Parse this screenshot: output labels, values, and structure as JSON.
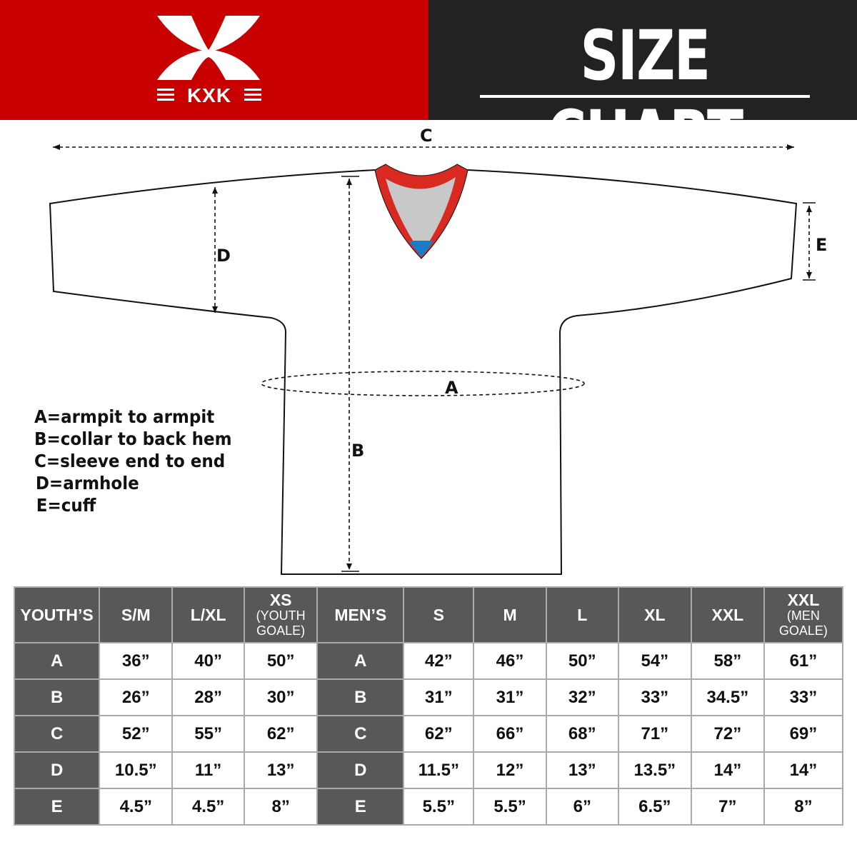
{
  "brand": {
    "name": "KXK",
    "color": "#c80000"
  },
  "header": {
    "title": "SIZE CHART",
    "background": "#222222"
  },
  "diagram": {
    "labels": {
      "A": "A",
      "B": "B",
      "C": "C",
      "D": "D",
      "E": "E"
    },
    "legend": [
      "A=armpit to armpit",
      "B=collar to back hem",
      "C=sleeve end to end",
      "D=armhole",
      "E=cuff"
    ],
    "collar_colors": {
      "trim": "#d92a22",
      "inner": "#c8c8c8",
      "tag": "#1a7cc4"
    }
  },
  "table": {
    "youth": {
      "header": "YOUTH’S",
      "columns": [
        {
          "main": "S/M",
          "sub": ""
        },
        {
          "main": "L/XL",
          "sub": ""
        },
        {
          "main": "XS",
          "sub": "(YOUTH GOALE)"
        }
      ],
      "rows": [
        {
          "key": "A",
          "values": [
            "36”",
            "40”",
            "50”"
          ]
        },
        {
          "key": "B",
          "values": [
            "26”",
            "28”",
            "30”"
          ]
        },
        {
          "key": "C",
          "values": [
            "52”",
            "55”",
            "62”"
          ]
        },
        {
          "key": "D",
          "values": [
            "10.5”",
            "11”",
            "13”"
          ]
        },
        {
          "key": "E",
          "values": [
            "4.5”",
            "4.5”",
            "8”"
          ]
        }
      ]
    },
    "men": {
      "header": "MEN’S",
      "columns": [
        {
          "main": "S",
          "sub": ""
        },
        {
          "main": "M",
          "sub": ""
        },
        {
          "main": "L",
          "sub": ""
        },
        {
          "main": "XL",
          "sub": ""
        },
        {
          "main": "XXL",
          "sub": ""
        },
        {
          "main": "XXL",
          "sub": "(MEN GOALE)"
        }
      ],
      "rows": [
        {
          "key": "A",
          "values": [
            "42”",
            "46”",
            "50”",
            "54”",
            "58”",
            "61”"
          ]
        },
        {
          "key": "B",
          "values": [
            "31”",
            "31”",
            "32”",
            "33”",
            "34.5”",
            "33”"
          ]
        },
        {
          "key": "C",
          "values": [
            "62”",
            "66”",
            "68”",
            "71”",
            "72”",
            "69”"
          ]
        },
        {
          "key": "D",
          "values": [
            "11.5”",
            "12”",
            "13”",
            "13.5”",
            "14”",
            "14”"
          ]
        },
        {
          "key": "E",
          "values": [
            "5.5”",
            "5.5”",
            "6”",
            "6.5”",
            "7”",
            "8”"
          ]
        }
      ]
    }
  }
}
